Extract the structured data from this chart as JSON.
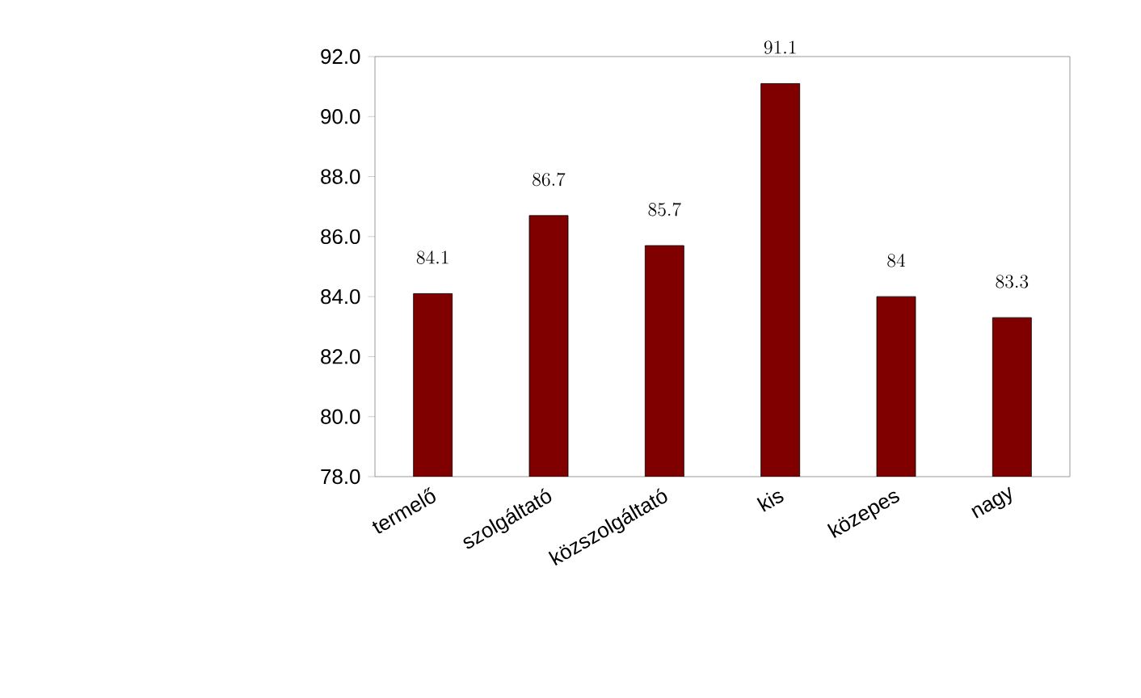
{
  "chart_data": {
    "type": "bar",
    "categories": [
      "termelő",
      "szolgáltató",
      "közszolgáltató",
      "kis",
      "közepes",
      "nagy"
    ],
    "values": [
      84.1,
      86.7,
      85.7,
      91.1,
      84,
      83.3
    ],
    "color": "#800000",
    "ylim": [
      78,
      92
    ],
    "yticks": [
      {
        "value": 78,
        "label": "78.0"
      },
      {
        "value": 80,
        "label": "80.0"
      },
      {
        "value": 82,
        "label": "82.0"
      },
      {
        "value": 84,
        "label": "84.0"
      },
      {
        "value": 86,
        "label": "86.0"
      },
      {
        "value": 88,
        "label": "88.0"
      },
      {
        "value": 90,
        "label": "90.0"
      },
      {
        "value": 92,
        "label": "92.0"
      }
    ],
    "data_labels": true
  }
}
